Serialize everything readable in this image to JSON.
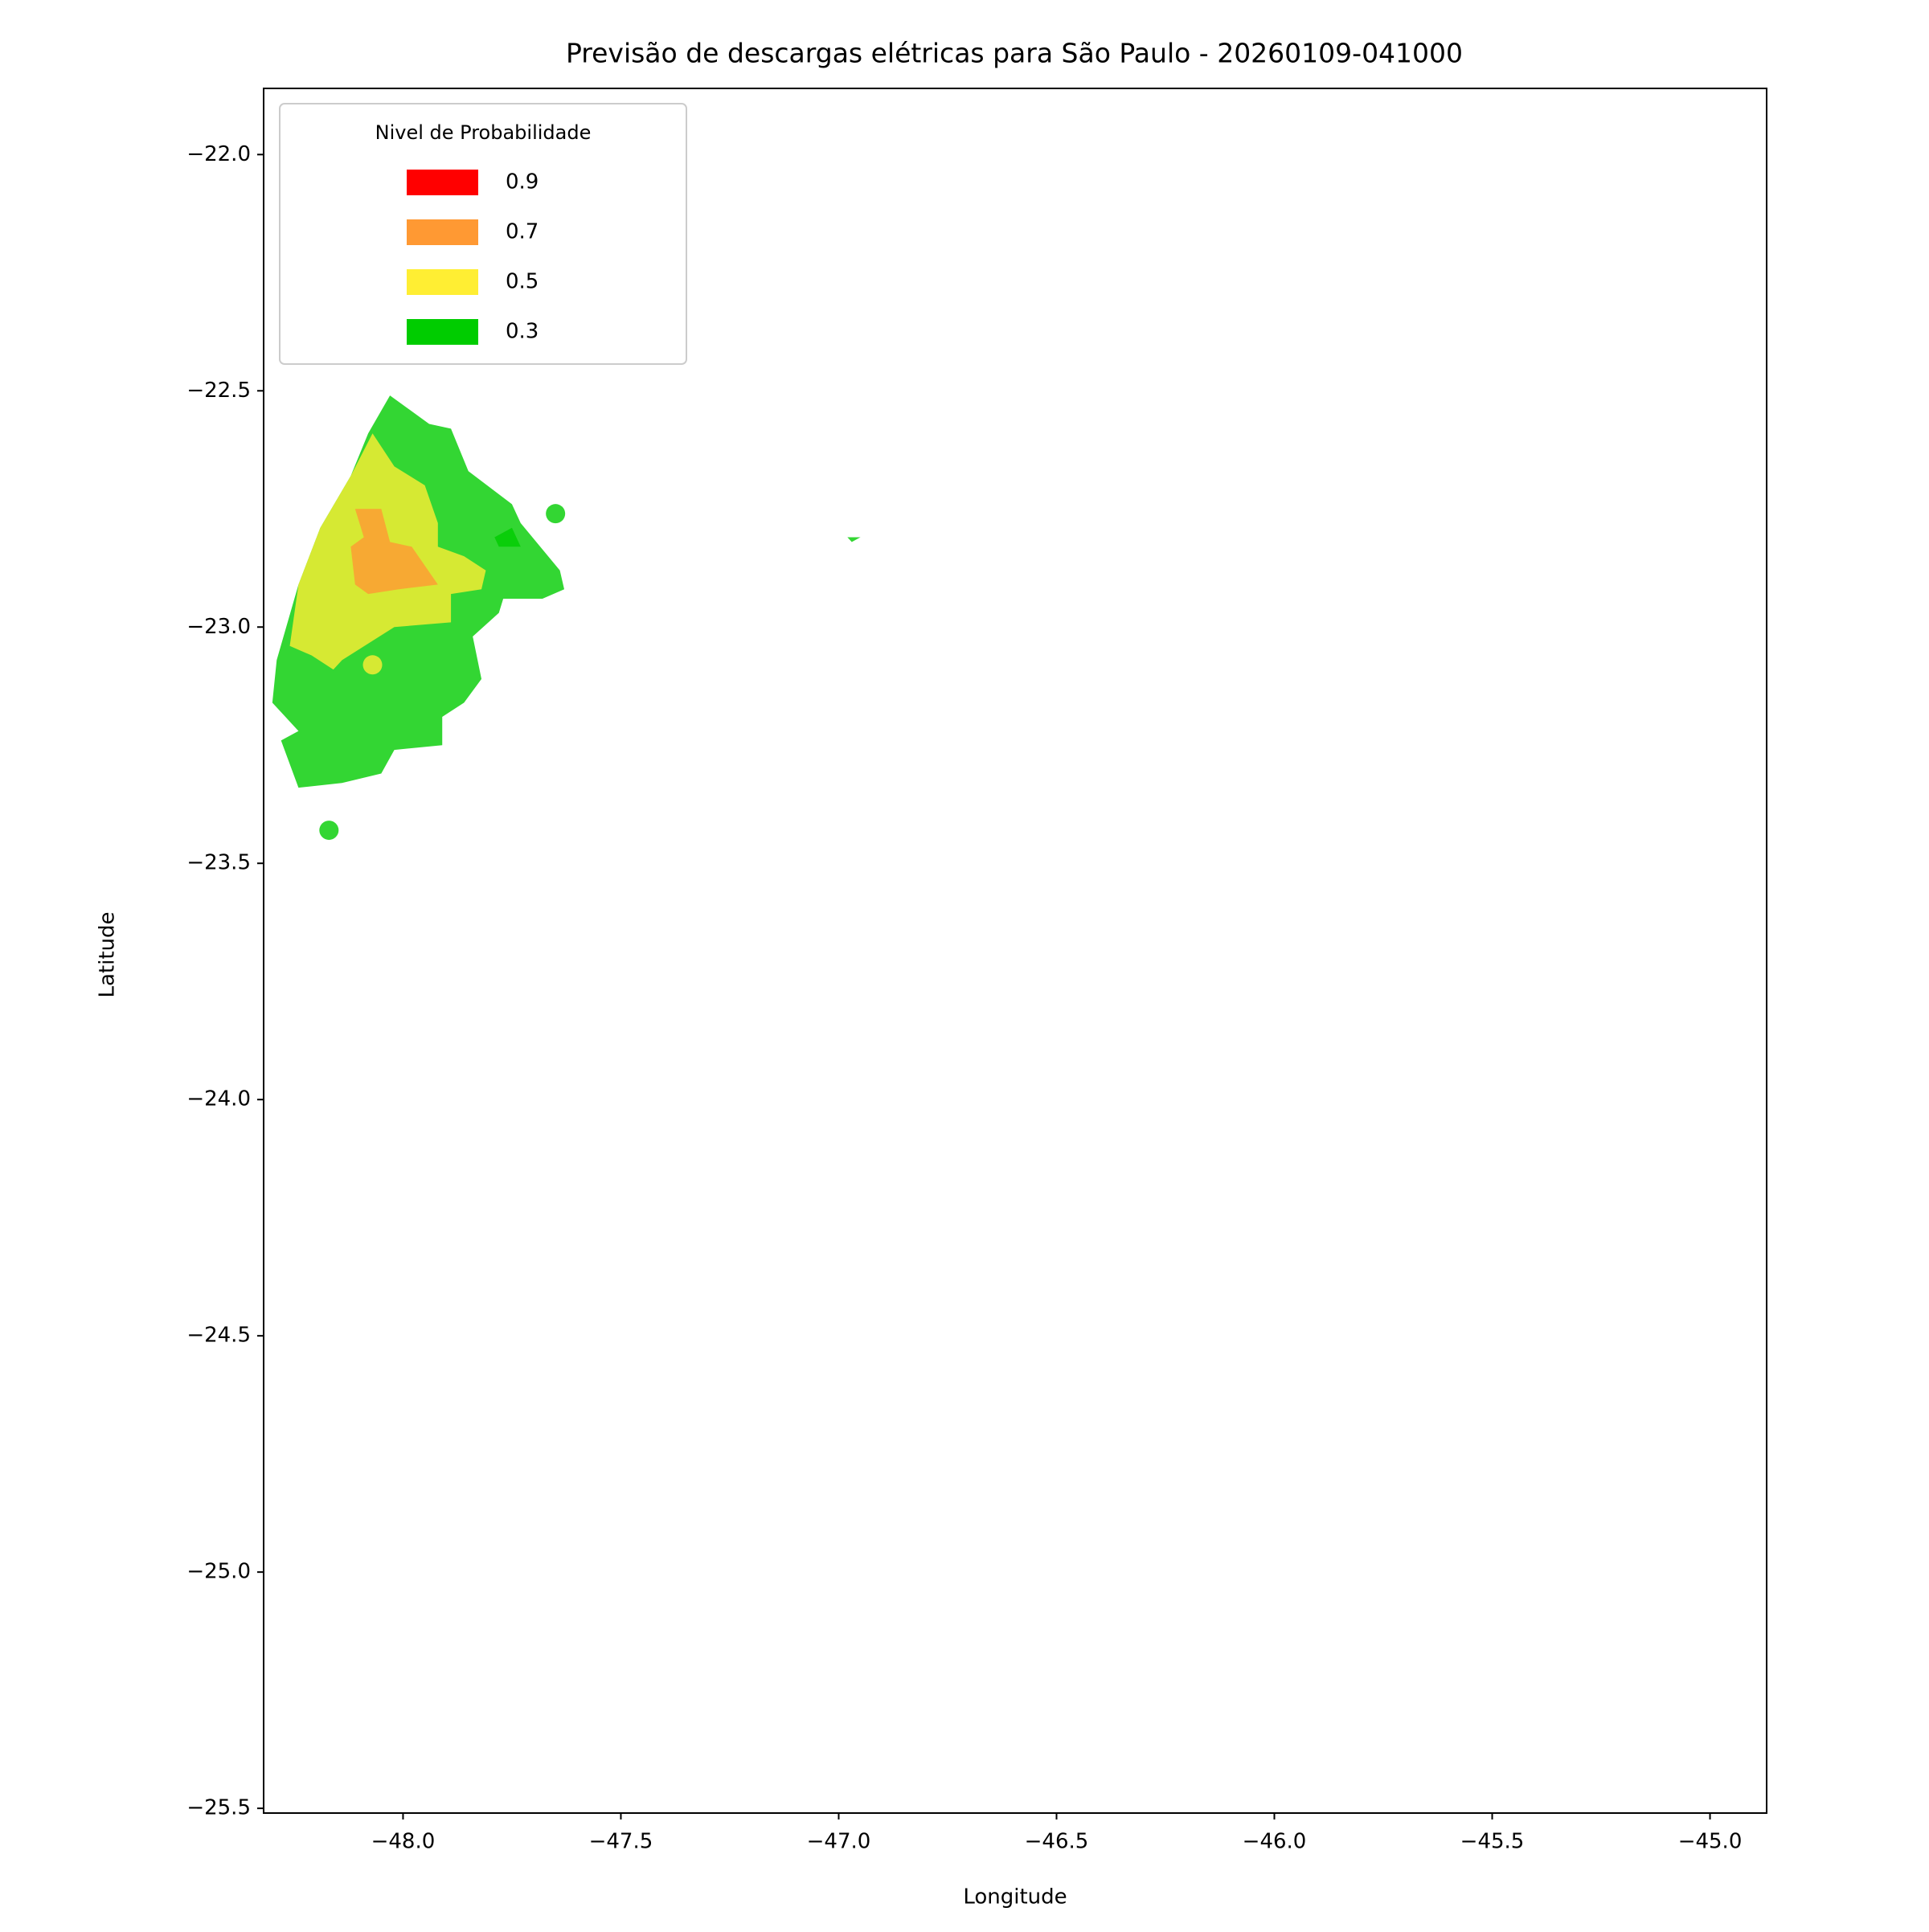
{
  "chart_data": {
    "type": "contour-map",
    "title": "Previsão de descargas elétricas para São Paulo - 20260109-041000",
    "x_label": "Longitude",
    "y_label": "Latitude",
    "xlim": [
      -48.32,
      -44.87
    ],
    "ylim": [
      -25.51,
      -21.86
    ],
    "xticks": [
      {
        "value": -48.0,
        "label": "−48.0"
      },
      {
        "value": -47.5,
        "label": "−47.5"
      },
      {
        "value": -47.0,
        "label": "−47.0"
      },
      {
        "value": -46.5,
        "label": "−46.5"
      },
      {
        "value": -46.0,
        "label": "−46.0"
      },
      {
        "value": -45.5,
        "label": "−45.5"
      },
      {
        "value": -45.0,
        "label": "−45.0"
      }
    ],
    "yticks": [
      {
        "value": -22.0,
        "label": "−22.0"
      },
      {
        "value": -22.5,
        "label": "−22.5"
      },
      {
        "value": -23.0,
        "label": "−23.0"
      },
      {
        "value": -23.5,
        "label": "−23.5"
      },
      {
        "value": -24.0,
        "label": "−24.0"
      },
      {
        "value": -24.5,
        "label": "−24.5"
      },
      {
        "value": -25.0,
        "label": "−25.0"
      },
      {
        "value": -25.5,
        "label": "−25.5"
      }
    ],
    "legend_title": "Nivel de Probabilidade",
    "legend_position": "upper-left",
    "fill_opacity": 0.8,
    "series": [
      {
        "name": "0.9",
        "color": "#ff0000",
        "regions": [],
        "points": {
          "lon": [],
          "lat": []
        }
      },
      {
        "name": "0.7",
        "color": "#ff9933",
        "regions": [
          {
            "lon": [
              -48.11,
              -48.05,
              -48.03,
              -47.98,
              -47.92,
              -48.01,
              -48.08,
              -48.11,
              -48.12,
              -48.09
            ],
            "lat": [
              -22.75,
              -22.75,
              -22.82,
              -22.83,
              -22.91,
              -22.92,
              -22.93,
              -22.91,
              -22.83,
              -22.81
            ]
          }
        ],
        "points": {
          "lon": [],
          "lat": []
        }
      },
      {
        "name": "0.5",
        "color": "#ffee33",
        "regions": [
          {
            "lon": [
              -48.07,
              -48.02,
              -47.95,
              -47.92,
              -47.92,
              -47.86,
              -47.81,
              -47.82,
              -47.89,
              -47.89,
              -48.02,
              -48.14,
              -48.16,
              -48.21,
              -48.26,
              -48.24,
              -48.19,
              -48.12
            ],
            "lat": [
              -22.59,
              -22.66,
              -22.7,
              -22.78,
              -22.83,
              -22.85,
              -22.88,
              -22.92,
              -22.93,
              -22.99,
              -23.0,
              -23.07,
              -23.09,
              -23.06,
              -23.04,
              -22.91,
              -22.79,
              -22.68
            ]
          }
        ],
        "points": {
          "lon": [
            -48.07
          ],
          "lat": [
            -23.08
          ]
        }
      },
      {
        "name": "0.3",
        "color": "#00cc00",
        "regions": [
          {
            "lon": [
              -48.03,
              -47.94,
              -47.89,
              -47.85,
              -47.75,
              -47.73,
              -47.64,
              -47.63,
              -47.68,
              -47.77,
              -47.78,
              -47.84,
              -47.82,
              -47.86,
              -47.91,
              -47.91,
              -48.02,
              -48.05,
              -48.14,
              -48.24,
              -48.28,
              -48.24,
              -48.3,
              -48.29,
              -48.24,
              -48.19,
              -48.12,
              -48.08
            ],
            "lat": [
              -22.51,
              -22.57,
              -22.58,
              -22.67,
              -22.74,
              -22.78,
              -22.88,
              -22.92,
              -22.94,
              -22.94,
              -22.97,
              -23.02,
              -23.11,
              -23.16,
              -23.19,
              -23.25,
              -23.26,
              -23.31,
              -23.33,
              -23.34,
              -23.24,
              -23.22,
              -23.16,
              -23.07,
              -22.91,
              -22.79,
              -22.68,
              -22.59
            ]
          },
          {
            "lon": [
              -47.79,
              -47.75,
              -47.73,
              -47.78
            ],
            "lat": [
              -22.81,
              -22.79,
              -22.83,
              -22.83
            ]
          },
          {
            "lon": [
              -46.98,
              -46.95,
              -46.97
            ],
            "lat": [
              -22.81,
              -22.81,
              -22.82
            ]
          }
        ],
        "points": {
          "lon": [
            -47.65,
            -48.17
          ],
          "lat": [
            -22.76,
            -23.43
          ]
        }
      }
    ]
  }
}
